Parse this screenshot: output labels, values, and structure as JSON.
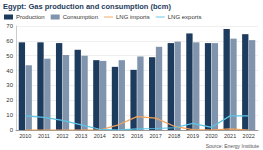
{
  "chart_data": {
    "type": "bar",
    "title": "Egypt: Gas production and consumption (bcm)",
    "annotations": [
      "Source: Energy Institute"
    ],
    "categories": [
      "2010",
      "2011",
      "2012",
      "2013",
      "2014",
      "2015",
      "2016",
      "2017",
      "2018",
      "2019",
      "2020",
      "2021",
      "2022"
    ],
    "series": [
      {
        "name": "Production",
        "type": "bar",
        "color": "#1d3b5c",
        "values": [
          59,
          59,
          58.5,
          54,
          47,
          42.5,
          40.5,
          49,
          58.5,
          65,
          58.5,
          68,
          64.5
        ]
      },
      {
        "name": "Consumption",
        "type": "bar",
        "color": "#8095ad",
        "values": [
          43.5,
          48,
          50.5,
          50,
          46.5,
          47,
          49.5,
          56,
          59.5,
          59,
          58.5,
          61.5,
          60.5
        ]
      },
      {
        "name": "LNG imports",
        "type": "line",
        "color": "#f4a259",
        "line_style": "solid",
        "values": [
          0,
          0,
          0,
          0,
          0,
          3.5,
          9,
          8,
          2.5,
          0.3,
          0,
          0.7,
          0
        ]
      },
      {
        "name": "LNG exports",
        "type": "line",
        "color": "#5bc4e6",
        "line_style": "solid",
        "values": [
          9.5,
          8.5,
          6.5,
          3.5,
          0.5,
          0,
          0.7,
          1,
          1.5,
          4.5,
          1.8,
          9.5,
          9.5
        ]
      }
    ],
    "ylim": [
      0,
      70
    ],
    "yticks": [
      0,
      10,
      20,
      30,
      40,
      50,
      60,
      70
    ],
    "grid": true,
    "legend": "top-left",
    "data_labels": false
  }
}
